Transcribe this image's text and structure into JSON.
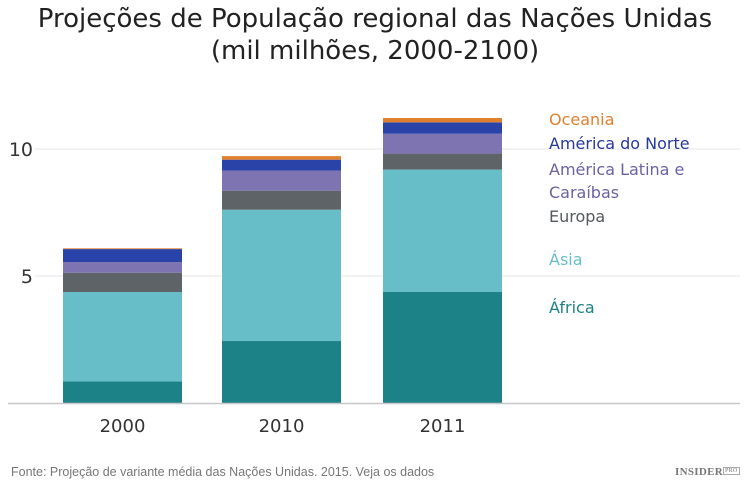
{
  "chart_data": {
    "type": "bar",
    "stacked": true,
    "title_lines": [
      "Projeções de População regional das Nações Unidas",
      "(mil milhões, 2000-2100)"
    ],
    "categories": [
      "2000",
      "2010",
      "2011"
    ],
    "yticks": [
      "5",
      "10"
    ],
    "ylim": [
      0,
      11.5
    ],
    "grid": true,
    "legend_placement": "right",
    "series": [
      {
        "name": "África",
        "color": "#1d8288",
        "label_color": "#1d8288",
        "values": [
          0.85,
          2.44,
          4.37
        ]
      },
      {
        "name": "Ásia",
        "color": "#68bec8",
        "label_color": "#68bec8",
        "values": [
          3.52,
          5.17,
          4.82
        ]
      },
      {
        "name": "Europa",
        "color": "#5d6366",
        "label_color": "#555a5c",
        "values": [
          0.76,
          0.75,
          0.63
        ]
      },
      {
        "name": "América Latina e Caraíbas",
        "name_lines": [
          "América Latina e",
          "Caraíbas"
        ],
        "color": "#7f74b2",
        "label_color": "#6a62a2",
        "values": [
          0.42,
          0.79,
          0.78
        ]
      },
      {
        "name": "América do Norte",
        "color": "#2a43a8",
        "label_color": "#26389a",
        "values": [
          0.51,
          0.43,
          0.45
        ]
      },
      {
        "name": "Oceania",
        "color": "#e0802e",
        "label_color": "#e0802e",
        "values": [
          0.03,
          0.14,
          0.17
        ]
      }
    ]
  },
  "footer": {
    "source": "Fonte: Projeção de variante média das Nações Unidas. 2015. Veja os dados",
    "logo": "INSIDER",
    "logo_sup": "PRO"
  }
}
